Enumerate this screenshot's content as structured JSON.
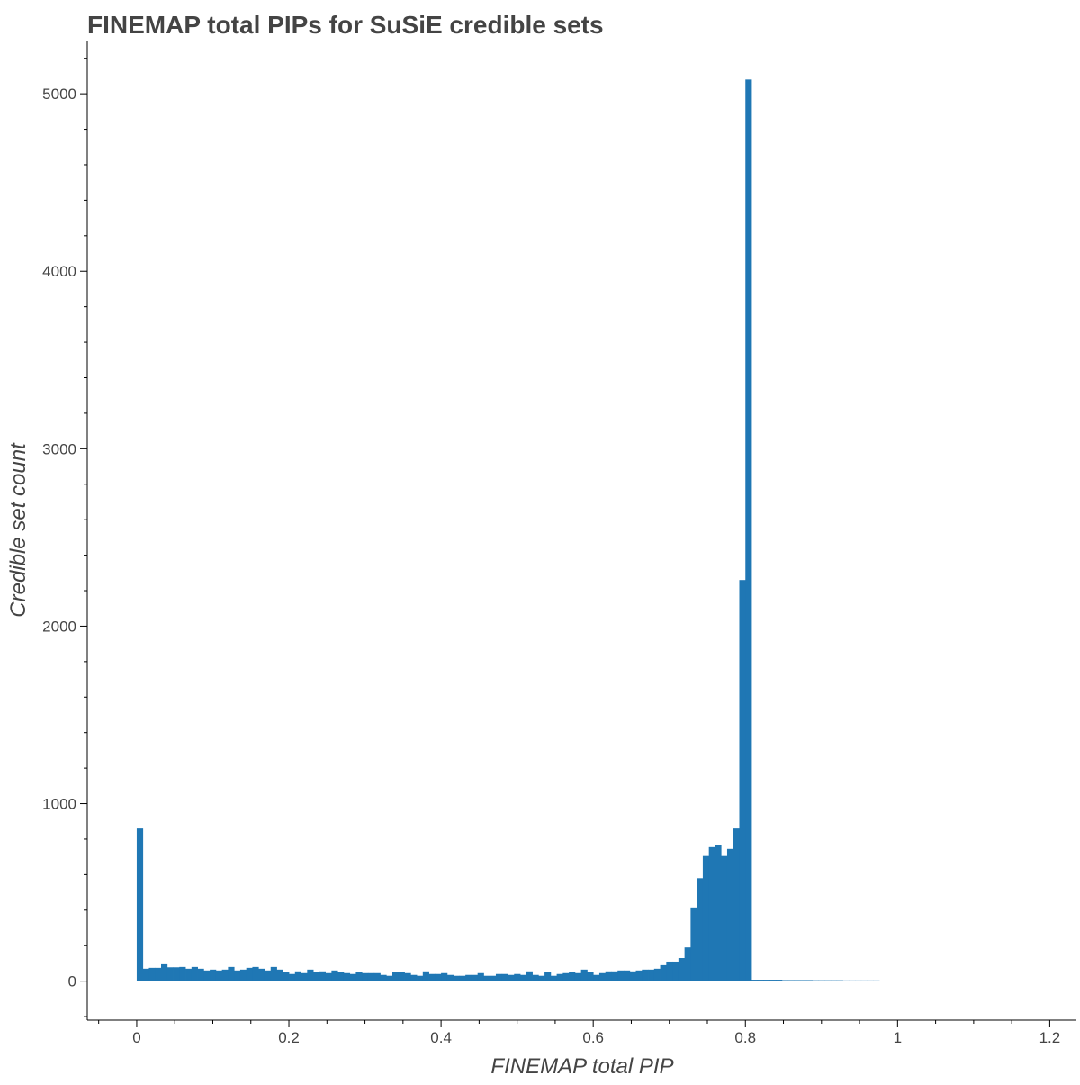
{
  "chart_data": {
    "type": "bar",
    "title": "FINEMAP total PIPs for SuSiE credible sets",
    "xlabel": "FINEMAP total PIP",
    "ylabel": "Credible set count",
    "xlim": [
      -0.065,
      1.235
    ],
    "ylim": [
      -220,
      5300
    ],
    "x_ticks": [
      0,
      0.2,
      0.4,
      0.6,
      0.8,
      1,
      1.2
    ],
    "x_tick_labels": [
      "0",
      "0.2",
      "0.4",
      "0.6",
      "0.8",
      "1",
      "1.2"
    ],
    "y_ticks": [
      0,
      1000,
      2000,
      3000,
      4000,
      5000
    ],
    "y_tick_labels": [
      "0",
      "1000",
      "2000",
      "3000",
      "4000",
      "5000"
    ],
    "grid": false,
    "color": "#1f77b4",
    "bin_start": 0,
    "bin_width": 0.008,
    "counts": [
      860,
      70,
      75,
      75,
      95,
      78,
      78,
      80,
      70,
      80,
      70,
      60,
      65,
      60,
      65,
      80,
      60,
      65,
      75,
      80,
      70,
      60,
      80,
      65,
      50,
      40,
      55,
      45,
      65,
      50,
      55,
      45,
      60,
      50,
      45,
      40,
      50,
      45,
      45,
      45,
      35,
      30,
      50,
      50,
      45,
      35,
      30,
      55,
      40,
      40,
      45,
      35,
      30,
      30,
      35,
      35,
      45,
      30,
      30,
      40,
      40,
      35,
      40,
      35,
      55,
      35,
      30,
      50,
      30,
      40,
      45,
      50,
      45,
      65,
      50,
      35,
      45,
      55,
      55,
      60,
      60,
      55,
      60,
      65,
      65,
      70,
      90,
      110,
      110,
      130,
      190,
      415,
      580,
      705,
      755,
      765,
      705,
      745,
      860,
      2260,
      5080,
      8,
      8,
      8,
      8,
      8,
      6,
      6,
      6,
      6,
      6,
      5,
      5,
      5,
      5,
      5,
      4,
      4,
      4,
      4,
      4,
      4,
      3,
      3,
      3
    ]
  }
}
